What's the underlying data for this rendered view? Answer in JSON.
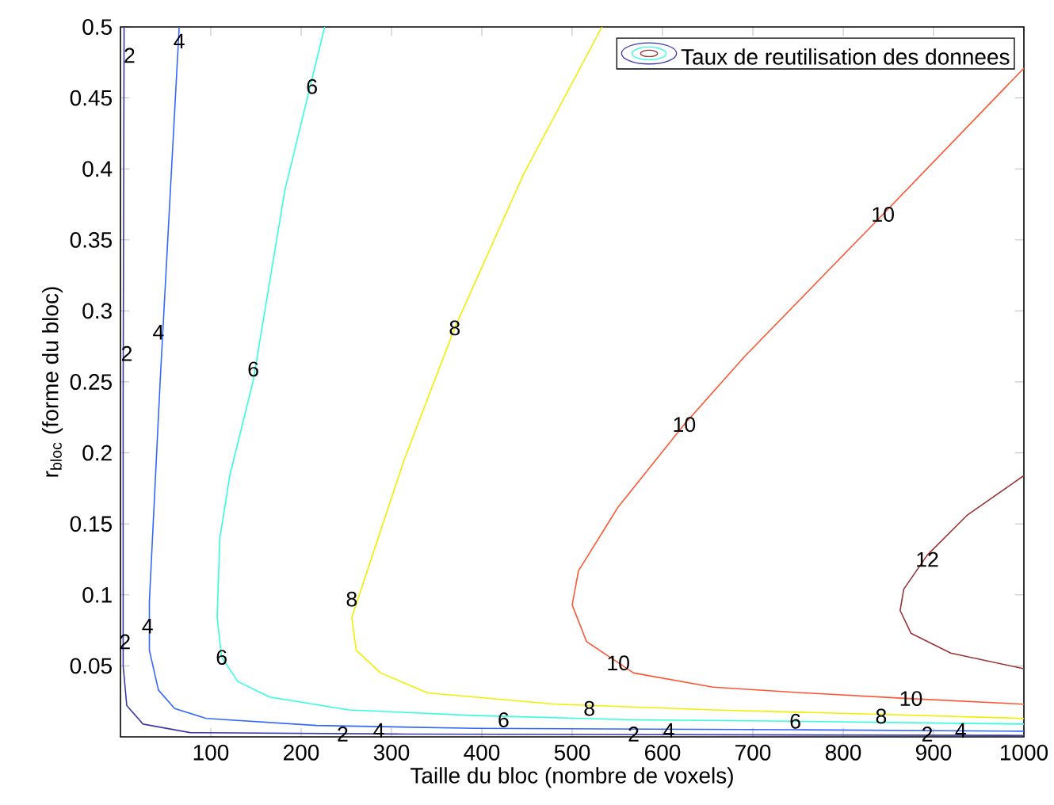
{
  "chart_data": {
    "type": "line",
    "xlabel": "Taille du bloc (nombre de voxels)",
    "ylabel": "r$_{bloc}$ (forme du bloc)",
    "legend_title": "Taux de reutilisation des donnees",
    "xlim": [
      0,
      1000
    ],
    "ylim": [
      0,
      0.5
    ],
    "xticks": [
      100,
      200,
      300,
      400,
      500,
      600,
      700,
      800,
      900,
      1000
    ],
    "yticks": [
      0.05,
      0.1,
      0.15,
      0.2,
      0.25,
      0.3,
      0.35,
      0.4,
      0.45,
      0.5
    ],
    "grid": false,
    "series": [
      {
        "color": "#3a3aaa",
        "x": [
          4,
          3,
          3,
          7,
          25,
          77,
          305,
          1000
        ],
        "values": [
          0.5,
          0.24,
          0.05,
          0.022,
          0.009,
          0.003,
          0.002,
          0.001
        ]
      },
      {
        "color": "#3366ff",
        "x": [
          65,
          44,
          32,
          32,
          42,
          60,
          95,
          217,
          393,
          744,
          1000
        ],
        "values": [
          0.5,
          0.251,
          0.095,
          0.061,
          0.033,
          0.02,
          0.013,
          0.008,
          0.006,
          0.005,
          0.004
        ]
      },
      {
        "color": "#33ffdd",
        "x": [
          226,
          182,
          147,
          121,
          110,
          107,
          112,
          130,
          165,
          253,
          393,
          568,
          744,
          1000
        ],
        "values": [
          0.5,
          0.385,
          0.251,
          0.184,
          0.14,
          0.084,
          0.056,
          0.039,
          0.028,
          0.019,
          0.015,
          0.012,
          0.011,
          0.009
        ]
      },
      {
        "color": "#f0f000",
        "x": [
          533,
          446,
          370,
          314,
          279,
          256,
          261,
          288,
          340,
          481,
          656,
          831,
          1000
        ],
        "values": [
          0.5,
          0.396,
          0.288,
          0.195,
          0.128,
          0.084,
          0.061,
          0.045,
          0.031,
          0.023,
          0.019,
          0.016,
          0.013
        ]
      },
      {
        "color": "#ff5533",
        "x": [
          1000,
          844,
          691,
          624,
          551,
          507,
          500,
          516,
          568,
          656,
          756,
          872,
          1000
        ],
        "values": [
          0.471,
          0.368,
          0.268,
          0.22,
          0.162,
          0.117,
          0.093,
          0.067,
          0.045,
          0.035,
          0.031,
          0.027,
          0.023
        ]
      },
      {
        "color": "#993333",
        "x": [
          1000,
          937,
          893,
          867,
          863,
          875,
          919,
          1000
        ],
        "values": [
          0.184,
          0.156,
          0.128,
          0.104,
          0.089,
          0.073,
          0.059,
          0.048
        ]
      }
    ],
    "annotations": [
      {
        "text": "2",
        "x": 10,
        "y": 0.48
      },
      {
        "text": "2",
        "x": 7,
        "y": 0.27
      },
      {
        "text": "2",
        "x": 5,
        "y": 0.067
      },
      {
        "text": "2",
        "x": 246,
        "y": 0.002
      },
      {
        "text": "2",
        "x": 568,
        "y": 0.002
      },
      {
        "text": "2",
        "x": 893,
        "y": 0.002
      },
      {
        "text": "4",
        "x": 65,
        "y": 0.49
      },
      {
        "text": "4",
        "x": 42,
        "y": 0.285
      },
      {
        "text": "4",
        "x": 30,
        "y": 0.078
      },
      {
        "text": "4",
        "x": 286,
        "y": 0.0045
      },
      {
        "text": "4",
        "x": 607,
        "y": 0.0045
      },
      {
        "text": "4",
        "x": 930,
        "y": 0.0045
      },
      {
        "text": "6",
        "x": 212,
        "y": 0.458
      },
      {
        "text": "6",
        "x": 147,
        "y": 0.259
      },
      {
        "text": "6",
        "x": 112,
        "y": 0.056
      },
      {
        "text": "6",
        "x": 424,
        "y": 0.012
      },
      {
        "text": "6",
        "x": 747,
        "y": 0.011
      },
      {
        "text": "8",
        "x": 370,
        "y": 0.288
      },
      {
        "text": "8",
        "x": 256,
        "y": 0.097
      },
      {
        "text": "8",
        "x": 519,
        "y": 0.02
      },
      {
        "text": "8",
        "x": 842,
        "y": 0.0145
      },
      {
        "text": "10",
        "x": 844,
        "y": 0.368
      },
      {
        "text": "10",
        "x": 624,
        "y": 0.22
      },
      {
        "text": "10",
        "x": 551,
        "y": 0.052
      },
      {
        "text": "10",
        "x": 875,
        "y": 0.027
      },
      {
        "text": "12",
        "x": 893,
        "y": 0.125
      }
    ]
  }
}
